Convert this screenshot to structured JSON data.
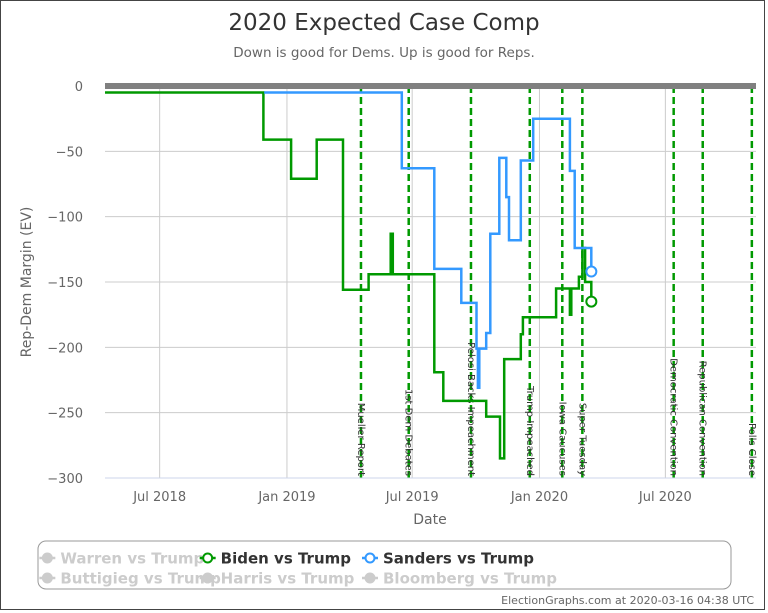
{
  "chart_data": {
    "type": "line",
    "title": "2020 Expected Case Comp",
    "subtitle": "Down is good for Dems. Up is good for Reps.",
    "xlabel": "Date",
    "ylabel": "Rep-Dem Margin (EV)",
    "xlim": [
      "2018-04-13",
      "2020-11-09"
    ],
    "ylim": [
      -300,
      0
    ],
    "y_ticks": [
      0,
      -50,
      -100,
      -150,
      -200,
      -250,
      -300
    ],
    "x_ticks": [
      {
        "date": "2018-07-01",
        "label": "Jul 2018"
      },
      {
        "date": "2019-01-01",
        "label": "Jan 2019"
      },
      {
        "date": "2019-07-01",
        "label": "Jul 2019"
      },
      {
        "date": "2020-01-01",
        "label": "Jan 2020"
      },
      {
        "date": "2020-07-01",
        "label": "Jul 2020"
      }
    ],
    "grid": true,
    "legend_placement": "bottom",
    "events": [
      {
        "date": "2019-04-18",
        "label": "Mueller Report"
      },
      {
        "date": "2019-06-26",
        "label": "1st Dem Debates"
      },
      {
        "date": "2019-09-24",
        "label": "Pelosi Backs Impeachment"
      },
      {
        "date": "2019-12-18",
        "label": "Trump Impeached"
      },
      {
        "date": "2020-02-03",
        "label": "Iowa Caucuses"
      },
      {
        "date": "2020-03-03",
        "label": "Super Tuesday"
      },
      {
        "date": "2020-07-13",
        "label": "Democratic Convention"
      },
      {
        "date": "2020-08-24",
        "label": "Republican Convention"
      },
      {
        "date": "2020-11-03",
        "label": "Polls Close"
      }
    ],
    "event_color": "#009900",
    "series": [
      {
        "name": "Biden vs Trump",
        "color": "#009900",
        "active": true,
        "points": [
          [
            "2018-04-13",
            -5
          ],
          [
            "2018-11-28",
            -41
          ],
          [
            "2019-01-07",
            -71
          ],
          [
            "2019-02-13",
            -41
          ],
          [
            "2019-03-23",
            -156
          ],
          [
            "2019-04-29",
            -144
          ],
          [
            "2019-05-30",
            -144
          ],
          [
            "2019-05-31",
            -113
          ],
          [
            "2019-06-03",
            -144
          ],
          [
            "2019-08-02",
            -219
          ],
          [
            "2019-08-15",
            -241
          ],
          [
            "2019-10-16",
            -253
          ],
          [
            "2019-11-05",
            -285
          ],
          [
            "2019-11-11",
            -209
          ],
          [
            "2019-12-05",
            -190
          ],
          [
            "2019-12-08",
            -177
          ],
          [
            "2020-01-25",
            -155
          ],
          [
            "2020-02-13",
            -155
          ],
          [
            "2020-02-14",
            -175
          ],
          [
            "2020-02-16",
            -155
          ],
          [
            "2020-02-27",
            -146
          ],
          [
            "2020-03-03",
            -124
          ],
          [
            "2020-03-06",
            -124
          ],
          [
            "2020-03-07",
            -150
          ],
          [
            "2020-03-16",
            -165
          ]
        ]
      },
      {
        "name": "Sanders vs Trump",
        "color": "#3399ff",
        "active": true,
        "points": [
          [
            "2018-11-29",
            -5
          ],
          [
            "2019-06-16",
            -63
          ],
          [
            "2019-08-02",
            -140
          ],
          [
            "2019-09-10",
            -166
          ],
          [
            "2019-10-02",
            -201
          ],
          [
            "2019-10-04",
            -231
          ],
          [
            "2019-10-06",
            -201
          ],
          [
            "2019-10-16",
            -189
          ],
          [
            "2019-10-22",
            -113
          ],
          [
            "2019-11-04",
            -55
          ],
          [
            "2019-11-14",
            -85
          ],
          [
            "2019-11-18",
            -118
          ],
          [
            "2019-12-05",
            -57
          ],
          [
            "2019-12-23",
            -25
          ],
          [
            "2020-02-14",
            -65
          ],
          [
            "2020-02-21",
            -124
          ],
          [
            "2020-03-07",
            -124
          ],
          [
            "2020-03-16",
            -142
          ]
        ]
      }
    ],
    "legend": [
      {
        "name": "Warren vs Trump",
        "active": false
      },
      {
        "name": "Biden vs Trump",
        "active": true,
        "color": "#009900"
      },
      {
        "name": "Sanders vs Trump",
        "active": true,
        "color": "#3399ff"
      },
      {
        "name": "Buttigieg vs Trump",
        "active": false
      },
      {
        "name": "Harris vs Trump",
        "active": false
      },
      {
        "name": "Bloomberg vs Trump",
        "active": false
      }
    ],
    "inactive_color": "#cccccc"
  },
  "credit": "ElectionGraphs.com at 2020-03-16 04:38 UTC"
}
